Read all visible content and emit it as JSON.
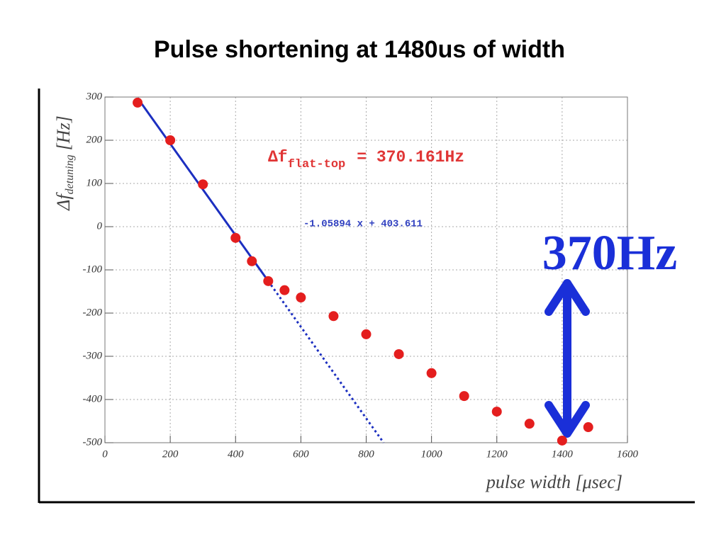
{
  "chart_data": {
    "type": "scatter",
    "title": "Pulse shortening at 1480us of width",
    "x_label": "pulse width [μsec]",
    "y_label": {
      "main": "Δf",
      "sub": "detuning",
      "unit": "[Hz]"
    },
    "annotation": {
      "main": "Δf",
      "sub": "flat-top",
      "rest": "= 370.161Hz"
    },
    "big_label": "370Hz",
    "fit": {
      "label": "-1.05894 x + 403.611",
      "slope": -1.05894,
      "intercept": 403.611,
      "solid_range": [
        100,
        500
      ],
      "color": "#1c2fc0"
    },
    "x": [
      100,
      200,
      300,
      400,
      450,
      500,
      550,
      600,
      700,
      800,
      900,
      1000,
      1100,
      1200,
      1300,
      1400,
      1480
    ],
    "series": [
      {
        "color": "#e41e1e",
        "values": [
          287,
          200,
          98,
          -26,
          -80,
          -126,
          -147,
          -164,
          -207,
          -249,
          -295,
          -339,
          -392,
          -428,
          -456,
          -495,
          -464
        ]
      }
    ],
    "xlim": [
      0,
      1600
    ],
    "xticks": [
      0,
      200,
      400,
      600,
      800,
      1000,
      1200,
      1400,
      1600
    ],
    "ylim": [
      -500,
      300
    ],
    "yticks": [
      -500,
      -400,
      -300,
      -200,
      -100,
      0,
      100,
      200,
      300
    ],
    "grid": true
  }
}
